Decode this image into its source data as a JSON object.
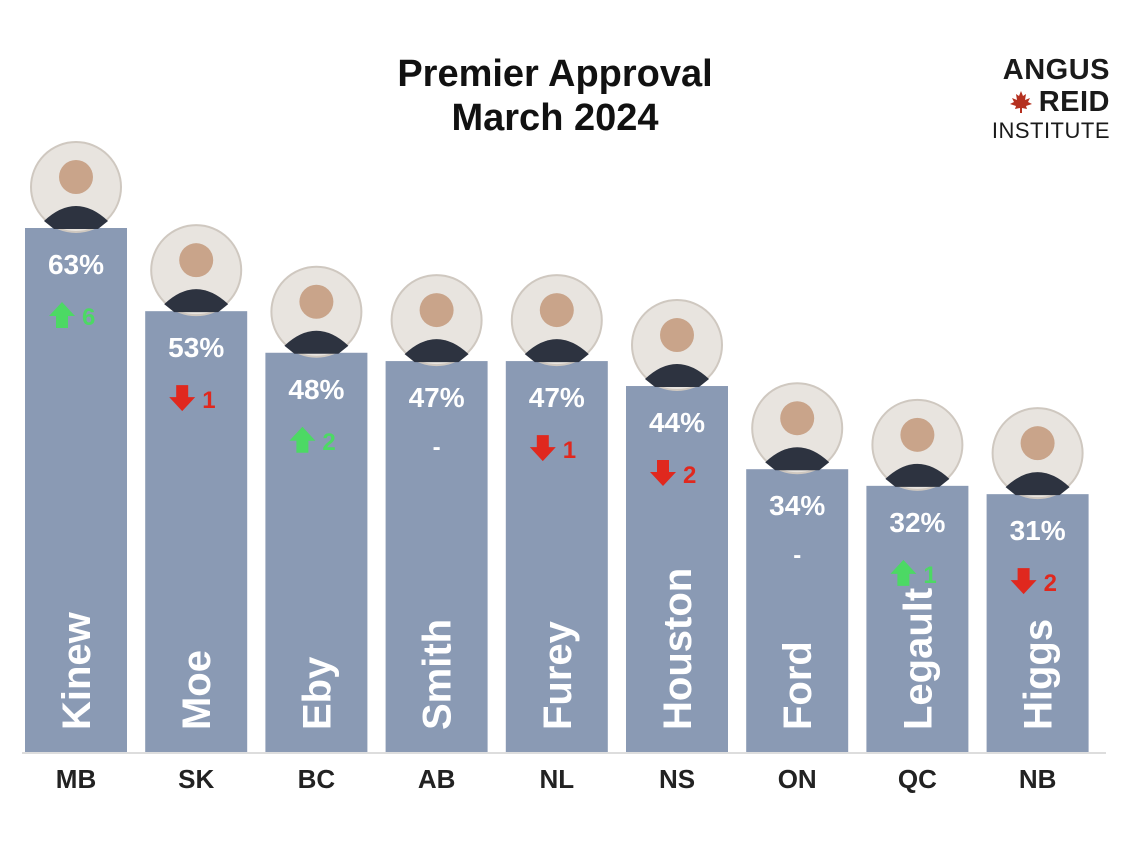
{
  "header": {
    "title_line1": "Premier Approval",
    "title_line2": "March 2024"
  },
  "logo": {
    "line1": "ANGUS",
    "line2": "REID",
    "line3": "INSTITUTE",
    "leaf_icon": "maple-leaf-icon",
    "leaf_color": "#b5301f"
  },
  "colors": {
    "bar": "#8a9ab4",
    "up": "#4cd964",
    "down": "#e0281e",
    "axis": "#dddddd"
  },
  "chart_data": {
    "type": "bar",
    "title": "Premier Approval March 2024",
    "categories": [
      "MB",
      "SK",
      "BC",
      "AB",
      "NL",
      "NS",
      "ON",
      "QC",
      "NB"
    ],
    "names": [
      "Kinew",
      "Moe",
      "Eby",
      "Smith",
      "Furey",
      "Houston",
      "Ford",
      "Legault",
      "Higgs"
    ],
    "values": [
      63,
      53,
      48,
      47,
      47,
      44,
      34,
      32,
      31
    ],
    "value_labels": [
      "63%",
      "53%",
      "48%",
      "47%",
      "47%",
      "44%",
      "34%",
      "32%",
      "31%"
    ],
    "changes": [
      {
        "dir": "up",
        "text": "6"
      },
      {
        "dir": "down",
        "text": "1"
      },
      {
        "dir": "up",
        "text": "2"
      },
      {
        "dir": "none",
        "text": "-"
      },
      {
        "dir": "down",
        "text": "1"
      },
      {
        "dir": "down",
        "text": "2"
      },
      {
        "dir": "none",
        "text": "-"
      },
      {
        "dir": "up",
        "text": "1"
      },
      {
        "dir": "down",
        "text": "2"
      }
    ],
    "ylim": [
      0,
      63
    ],
    "grid": false,
    "legend": "none"
  }
}
